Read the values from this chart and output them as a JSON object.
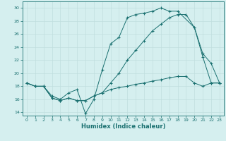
{
  "title": "",
  "xlabel": "Humidex (Indice chaleur)",
  "ylabel": "",
  "bg_color": "#d5efef",
  "line_color": "#1a7070",
  "grid_color": "#c0dede",
  "xlim": [
    -0.5,
    23.5
  ],
  "ylim": [
    13.5,
    31.0
  ],
  "xticks": [
    0,
    1,
    2,
    3,
    4,
    5,
    6,
    7,
    8,
    9,
    10,
    11,
    12,
    13,
    14,
    15,
    16,
    17,
    18,
    19,
    20,
    21,
    22,
    23
  ],
  "yticks": [
    14,
    16,
    18,
    20,
    22,
    24,
    26,
    28,
    30
  ],
  "line1_x": [
    0,
    1,
    2,
    3,
    4,
    5,
    6,
    7,
    8,
    9,
    10,
    11,
    12,
    13,
    14,
    15,
    16,
    17,
    18,
    20,
    21,
    22,
    23
  ],
  "line1_y": [
    18.5,
    18.0,
    18.0,
    16.5,
    16.0,
    17.0,
    17.5,
    13.8,
    16.0,
    20.5,
    24.5,
    25.5,
    28.5,
    29.0,
    29.2,
    29.5,
    30.0,
    29.5,
    29.5,
    27.0,
    22.5,
    18.5,
    18.5
  ],
  "line2_x": [
    0,
    1,
    2,
    3,
    4,
    5,
    6,
    7,
    8,
    9,
    10,
    11,
    12,
    13,
    14,
    15,
    16,
    17,
    18,
    19,
    20,
    21,
    22,
    23
  ],
  "line2_y": [
    18.5,
    18.0,
    18.0,
    16.2,
    15.8,
    16.2,
    15.8,
    15.8,
    16.5,
    17.0,
    17.5,
    17.8,
    18.0,
    18.3,
    18.5,
    18.8,
    19.0,
    19.3,
    19.5,
    19.5,
    18.5,
    18.0,
    18.5,
    18.5
  ],
  "line3_x": [
    0,
    1,
    2,
    3,
    4,
    5,
    6,
    7,
    8,
    9,
    10,
    11,
    12,
    13,
    14,
    15,
    16,
    17,
    18,
    19,
    20,
    21,
    22,
    23
  ],
  "line3_y": [
    18.5,
    18.0,
    18.0,
    16.2,
    15.8,
    16.2,
    15.8,
    15.8,
    16.5,
    17.0,
    18.5,
    20.0,
    22.0,
    23.5,
    25.0,
    26.5,
    27.5,
    28.5,
    29.0,
    29.0,
    27.0,
    23.0,
    21.5,
    18.5
  ]
}
